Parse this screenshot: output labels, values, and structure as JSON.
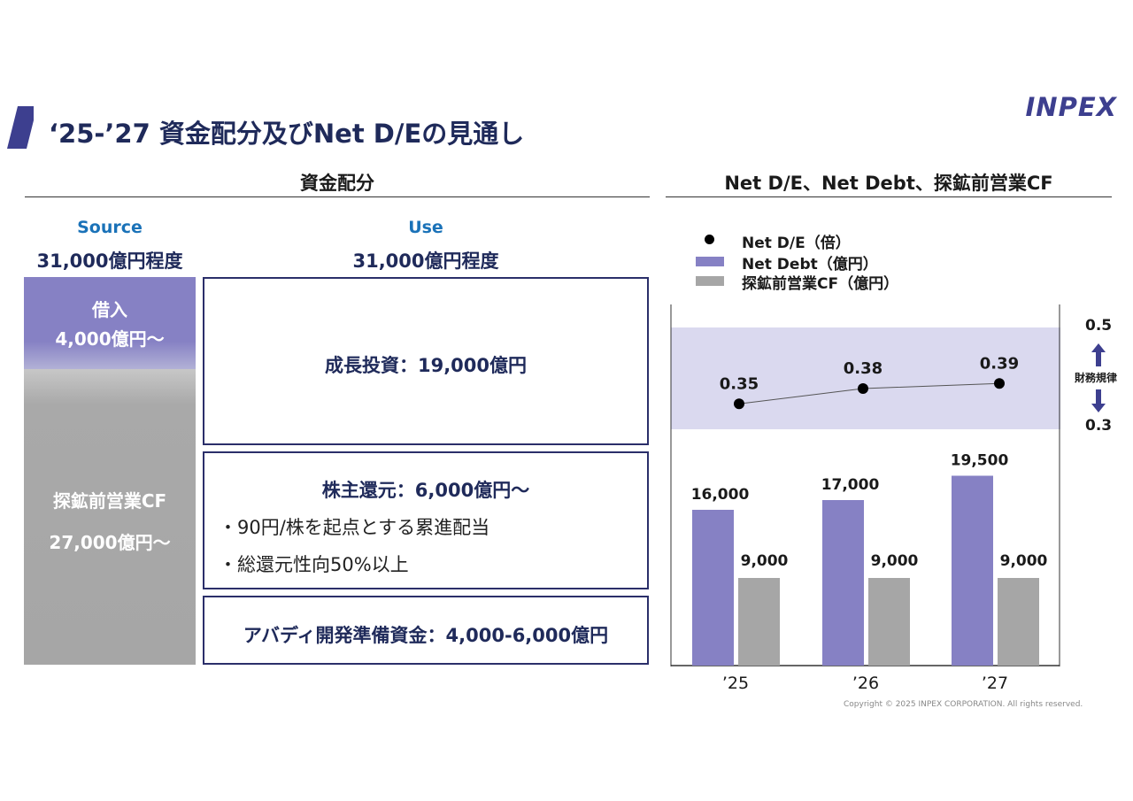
{
  "header": {
    "title": "‘25-’27 資金配分及びNet D/Eの見通し",
    "logo": "INPEX"
  },
  "allocation": {
    "heading": "資金配分",
    "source": {
      "label": "Source",
      "total": "31,000億円程度",
      "borrowing": {
        "label": "借入",
        "amount": "4,000億円～"
      },
      "cashflow": {
        "label": "探鉱前営業CF",
        "amount": "27,000億円～"
      }
    },
    "use": {
      "label": "Use",
      "total": "31,000億円程度",
      "growth": "成長投資：19,000億円",
      "shareholder": {
        "title": "株主還元：6,000億円～",
        "bullets": [
          "・90円/株を起点とする累進配当",
          "・総還元性向50%以上"
        ]
      },
      "abadi": "アバディ開発準備資金：4,000-6,000億円"
    }
  },
  "chart_panel": {
    "heading": "Net D/E、Net Debt、探鉱前営業CF",
    "band": {
      "upper_label": "0.5",
      "lower_label": "0.3",
      "caption": "財務規律"
    }
  },
  "chart_data": {
    "type": "bar",
    "categories": [
      "’25",
      "’26",
      "’27"
    ],
    "series": [
      {
        "name": "Net Debt（億円）",
        "kind": "bar",
        "values": [
          16000,
          17000,
          19500
        ],
        "labels": [
          "16,000",
          "17,000",
          "19,500"
        ],
        "color": "#8681c4"
      },
      {
        "name": "探鉱前営業CF（億円）",
        "kind": "bar",
        "values": [
          9000,
          9000,
          9000
        ],
        "labels": [
          "9,000",
          "9,000",
          "9,000"
        ],
        "color": "#a6a6a6"
      },
      {
        "name": "Net D/E（倍）",
        "kind": "line",
        "values": [
          0.35,
          0.38,
          0.39
        ],
        "labels": [
          "0.35",
          "0.38",
          "0.39"
        ],
        "color": "#000000"
      }
    ],
    "bar_axis": {
      "ylim": [
        0,
        20000
      ]
    },
    "ratio_axis": {
      "ylim": [
        0.25,
        0.55
      ],
      "band": [
        0.3,
        0.5
      ]
    },
    "band_color": "#dad9ef"
  },
  "footer": {
    "copyright": "Copyright © 2025 INPEX CORPORATION. All rights reserved."
  }
}
